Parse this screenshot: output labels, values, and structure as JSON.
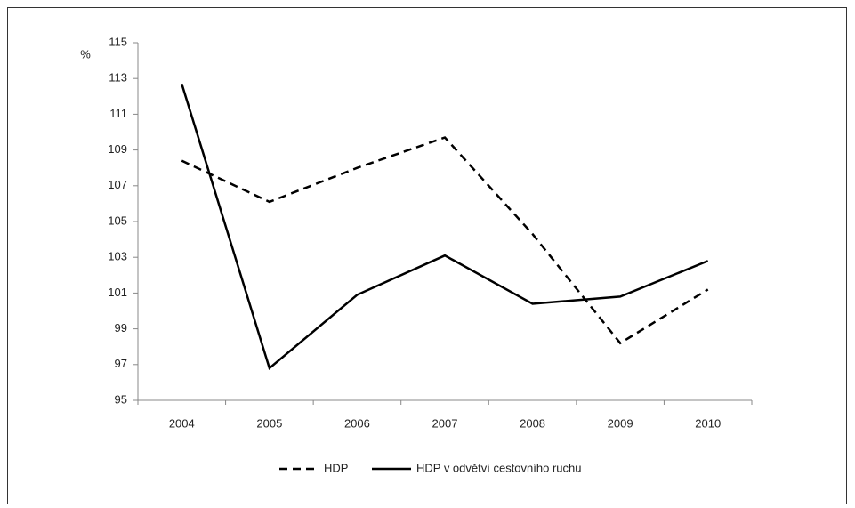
{
  "chart_data": {
    "type": "line",
    "y_label": "%",
    "categories": [
      "2004",
      "2005",
      "2006",
      "2007",
      "2008",
      "2009",
      "2010"
    ],
    "series": [
      {
        "name": "HDP",
        "color": "#000000",
        "dash": true,
        "values": [
          108.4,
          106.1,
          108.0,
          109.7,
          104.3,
          98.2,
          101.2
        ]
      },
      {
        "name": "HDP v odvětví cestovního ruchu",
        "color": "#000000",
        "dash": false,
        "values": [
          112.7,
          96.8,
          100.9,
          103.1,
          100.4,
          100.8,
          102.8
        ]
      }
    ],
    "ylim": [
      95,
      115
    ],
    "yticks": [
      95,
      97,
      99,
      101,
      103,
      105,
      107,
      109,
      111,
      113,
      115
    ],
    "grid": false
  }
}
